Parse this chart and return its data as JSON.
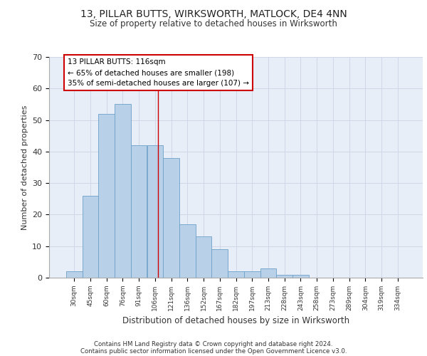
{
  "title": "13, PILLAR BUTTS, WIRKSWORTH, MATLOCK, DE4 4NN",
  "subtitle": "Size of property relative to detached houses in Wirksworth",
  "xlabel": "Distribution of detached houses by size in Wirksworth",
  "ylabel": "Number of detached properties",
  "bin_labels": [
    "30sqm",
    "45sqm",
    "60sqm",
    "76sqm",
    "91sqm",
    "106sqm",
    "121sqm",
    "136sqm",
    "152sqm",
    "167sqm",
    "182sqm",
    "197sqm",
    "213sqm",
    "228sqm",
    "243sqm",
    "258sqm",
    "273sqm",
    "289sqm",
    "304sqm",
    "319sqm",
    "334sqm"
  ],
  "bar_values": [
    2,
    26,
    52,
    55,
    42,
    42,
    38,
    17,
    13,
    9,
    2,
    2,
    3,
    1,
    1,
    0,
    0,
    0,
    0,
    0,
    0
  ],
  "bar_color": "#b8d0e8",
  "bar_edgecolor": "#6ca0c8",
  "grid_color": "#d0d8e8",
  "background_color": "#e8eef8",
  "red_line_x": 4.73,
  "annotation_text": "13 PILLAR BUTTS: 116sqm\n← 65% of detached houses are smaller (198)\n35% of semi-detached houses are larger (107) →",
  "annotation_box_color": "#ffffff",
  "annotation_box_edgecolor": "#cc0000",
  "footer_line1": "Contains HM Land Registry data © Crown copyright and database right 2024.",
  "footer_line2": "Contains public sector information licensed under the Open Government Licence v3.0.",
  "ylim": [
    0,
    70
  ],
  "yticks": [
    0,
    10,
    20,
    30,
    40,
    50,
    60,
    70
  ]
}
